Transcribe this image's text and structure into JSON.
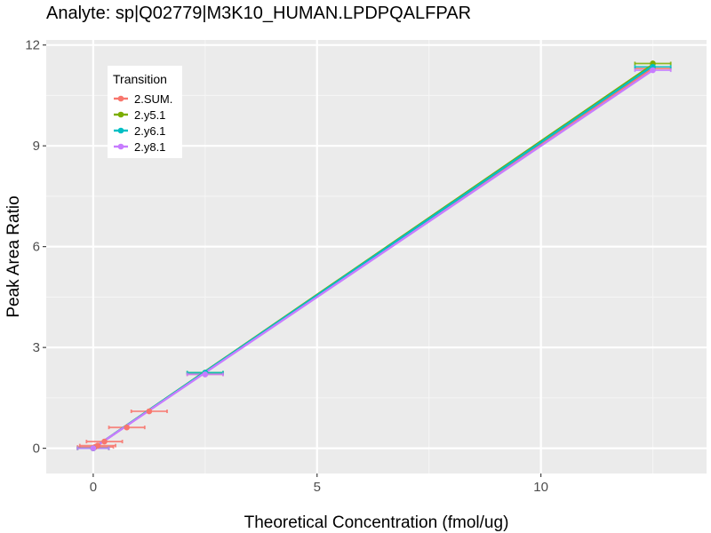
{
  "chart_data": {
    "type": "line",
    "title": "Analyte: sp|Q02779|M3K10_HUMAN.LPDPQALFPAR",
    "xlabel": "Theoretical Concentration (fmol/ug)",
    "ylabel": "Peak Area Ratio",
    "xlim": [
      -1.05,
      13.7
    ],
    "ylim": [
      -0.75,
      12.15
    ],
    "xticks": [
      0,
      5,
      10
    ],
    "xtick_labels": [
      "0",
      "5",
      "10"
    ],
    "yticks": [
      0,
      3,
      6,
      9,
      12
    ],
    "ytick_labels": [
      "0",
      "3",
      "6",
      "9",
      "12"
    ],
    "grid": true,
    "legend": {
      "title": "Transition",
      "position": "top-left",
      "entries": [
        "2.SUM.",
        "2.y5.1",
        "2.y6.1",
        "2.y8.1"
      ]
    },
    "series": [
      {
        "name": "2.SUM.",
        "color": "#F8766D",
        "points": [
          {
            "x": 0.0,
            "y": 0.0,
            "xmin": -0.35,
            "xmax": 0.35
          },
          {
            "x": 0.04,
            "y": 0.04,
            "xmin": -0.35,
            "xmax": 0.45
          },
          {
            "x": 0.1,
            "y": 0.08,
            "xmin": -0.3,
            "xmax": 0.5
          },
          {
            "x": 0.25,
            "y": 0.2,
            "xmin": -0.15,
            "xmax": 0.65
          },
          {
            "x": 0.75,
            "y": 0.62,
            "xmin": 0.35,
            "xmax": 1.15
          },
          {
            "x": 1.25,
            "y": 1.1,
            "xmin": 0.85,
            "xmax": 1.65
          },
          {
            "x": 2.5,
            "y": 2.2,
            "xmin": 2.1,
            "xmax": 2.9
          },
          {
            "x": 12.5,
            "y": 11.3,
            "xmin": 12.1,
            "xmax": 12.9
          }
        ],
        "fit": {
          "x": [
            0,
            12.5
          ],
          "y": [
            0,
            11.32
          ]
        }
      },
      {
        "name": "2.y5.1",
        "color": "#7CAE00",
        "points": [
          {
            "x": 0.0,
            "y": 0.0,
            "xmin": -0.35,
            "xmax": 0.35
          },
          {
            "x": 2.5,
            "y": 2.25,
            "xmin": 2.1,
            "xmax": 2.9
          },
          {
            "x": 12.5,
            "y": 11.45,
            "xmin": 12.1,
            "xmax": 12.9
          }
        ],
        "fit": {
          "x": [
            0,
            12.5
          ],
          "y": [
            0,
            11.42
          ]
        }
      },
      {
        "name": "2.y6.1",
        "color": "#00BFC4",
        "points": [
          {
            "x": 0.0,
            "y": 0.0,
            "xmin": -0.35,
            "xmax": 0.35
          },
          {
            "x": 2.5,
            "y": 2.25,
            "xmin": 2.1,
            "xmax": 2.9
          },
          {
            "x": 12.5,
            "y": 11.35,
            "xmin": 12.1,
            "xmax": 12.9
          }
        ],
        "fit": {
          "x": [
            0,
            12.5
          ],
          "y": [
            0,
            11.38
          ]
        }
      },
      {
        "name": "2.y8.1",
        "color": "#C77CFF",
        "points": [
          {
            "x": 0.0,
            "y": 0.0,
            "xmin": -0.35,
            "xmax": 0.35
          },
          {
            "x": 2.5,
            "y": 2.2,
            "xmin": 2.1,
            "xmax": 2.9
          },
          {
            "x": 12.5,
            "y": 11.25,
            "xmin": 12.1,
            "xmax": 12.9
          }
        ],
        "fit": {
          "x": [
            0,
            12.5
          ],
          "y": [
            0,
            11.25
          ]
        }
      }
    ]
  }
}
